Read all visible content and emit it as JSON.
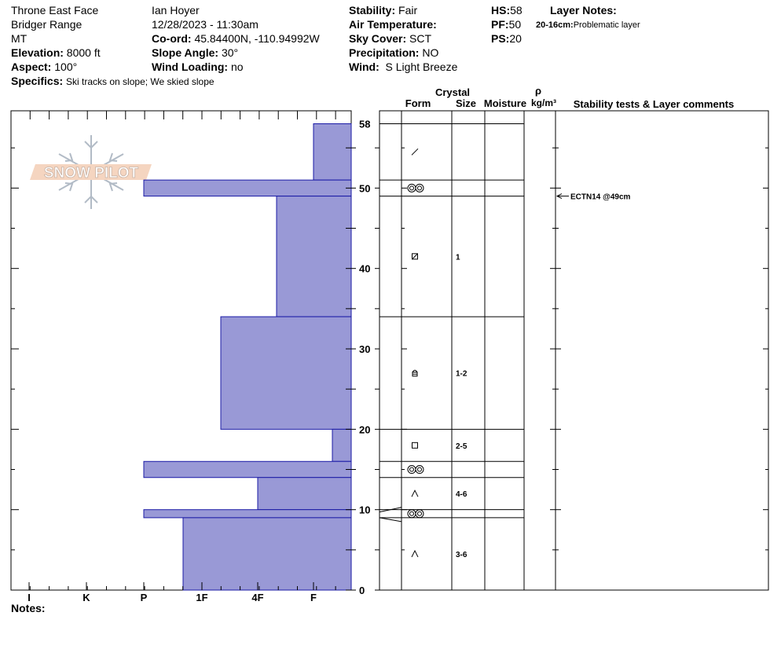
{
  "header": {
    "location": "Throne East Face",
    "range": "Bridger Range",
    "state": "MT",
    "elevation_label": "Elevation:",
    "elevation": "8000 ft",
    "aspect_label": "Aspect:",
    "aspect": "100°",
    "specifics_label": "Specifics:",
    "specifics": "Ski tracks on slope; We skied slope",
    "observer": "Ian Hoyer",
    "datetime": "12/28/2023 - 11:30am",
    "coord_label": "Co-ord:",
    "coord": "45.84400N, -110.94992W",
    "slope_label": "Slope Angle:",
    "slope": "30°",
    "wind_loading_label": "Wind Loading:",
    "wind_loading": "no",
    "stability_label": "Stability:",
    "stability": "Fair",
    "air_temp_label": "Air Temperature:",
    "air_temp": "",
    "sky_label": "Sky Cover:",
    "sky": "SCT",
    "precip_label": "Precipitation:",
    "precip": "NO",
    "wind_label": "Wind:",
    "wind": "S Light Breeze",
    "hs_label": "HS:",
    "hs": "58",
    "pf_label": "PF:",
    "pf": "50",
    "ps_label": "PS:",
    "ps": "20",
    "layer_notes_label": "Layer Notes:",
    "layer_note_range": "20-16cm:",
    "layer_note_text": "Problematic layer"
  },
  "logo_text": "SNOW PILOT",
  "notes_label": "Notes:",
  "columns": {
    "crystal": "Crystal",
    "form": "Form",
    "size": "Size",
    "moisture": "Moisture",
    "rho": "ρ",
    "density_unit": "kg/m³",
    "stability": "Stability tests & Layer comments"
  },
  "colors": {
    "hardness_fill": "#9999d6",
    "hardness_edge": "#1a1aa6"
  },
  "chart_data": {
    "type": "bar",
    "title": "",
    "xlabel": "",
    "ylabel": "",
    "hardness_scale": [
      "I",
      "K",
      "P",
      "1F",
      "4F",
      "F"
    ],
    "ylim": [
      0,
      58
    ],
    "y_ticks": [
      0,
      10,
      20,
      30,
      40,
      50,
      58
    ],
    "layers": [
      {
        "top": 58,
        "bottom": 51,
        "hardness": "F",
        "form": "precip-particle-icon",
        "size": ""
      },
      {
        "top": 51,
        "bottom": 49,
        "hardness": "P",
        "form": "melt-form-icon",
        "size": ""
      },
      {
        "top": 49,
        "bottom": 34,
        "hardness": "4F+",
        "form": "mixed-form-icon",
        "size": "1"
      },
      {
        "top": 34,
        "bottom": 20,
        "hardness": "1F+",
        "form": "rounding-facet-icon",
        "size": "1-2"
      },
      {
        "top": 20,
        "bottom": 16,
        "hardness": "F+",
        "form": "facet-icon",
        "size": "2-5"
      },
      {
        "top": 16,
        "bottom": 14,
        "hardness": "P",
        "form": "melt-form-icon",
        "size": ""
      },
      {
        "top": 14,
        "bottom": 10,
        "hardness": "4F",
        "form": "depth-hoar-icon",
        "size": "4-6"
      },
      {
        "top": 10,
        "bottom": 9,
        "hardness": "P",
        "form": "melt-form-icon",
        "size": ""
      },
      {
        "top": 9,
        "bottom": 0,
        "hardness": "1F-",
        "form": "depth-hoar-icon",
        "size": "3-6"
      }
    ],
    "stability_tests": [
      {
        "depth": 49,
        "label": "ECTN14 @49cm"
      }
    ]
  }
}
